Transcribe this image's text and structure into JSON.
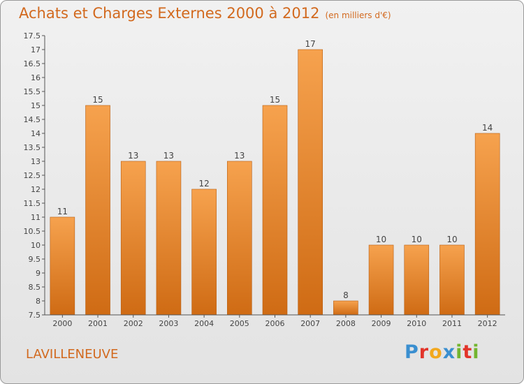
{
  "title": "Achats et Charges Externes 2000 à 2012",
  "unit": "(en milliers d'€)",
  "commune": "LAVILLENEUVE",
  "logo": {
    "letters": [
      {
        "ch": "P",
        "color": "#3a8fd0"
      },
      {
        "ch": "r",
        "color": "#e2342a"
      },
      {
        "ch": "o",
        "color": "#f2a81d"
      },
      {
        "ch": "x",
        "color": "#3a8fd0"
      },
      {
        "ch": "i",
        "color": "#73b52f"
      },
      {
        "ch": "t",
        "color": "#e2342a"
      },
      {
        "ch": "i",
        "color": "#73b52f"
      }
    ]
  },
  "colors": {
    "bar_top": "#f6a24e",
    "bar_bottom": "#cf6b14",
    "text": "#d2691e"
  },
  "chart_data": {
    "type": "bar",
    "title": "Achats et Charges Externes 2000 à 2012",
    "subtitle": "(en milliers d'€)",
    "categories": [
      "2000",
      "2001",
      "2002",
      "2003",
      "2004",
      "2005",
      "2006",
      "2007",
      "2008",
      "2009",
      "2010",
      "2011",
      "2012"
    ],
    "values": [
      11,
      15,
      13,
      13,
      12,
      13,
      15,
      17,
      8,
      10,
      10,
      10,
      14
    ],
    "ylim": [
      7.5,
      17.5
    ],
    "yticks": [
      "7.5",
      "8",
      "8.5",
      "9",
      "9.5",
      "10",
      "10.5",
      "11",
      "11.5",
      "12",
      "12.5",
      "13",
      "13.5",
      "14",
      "14.5",
      "15",
      "15.5",
      "16",
      "16.5",
      "17",
      "17.5"
    ],
    "grid": false,
    "xlabel": "",
    "ylabel": ""
  }
}
